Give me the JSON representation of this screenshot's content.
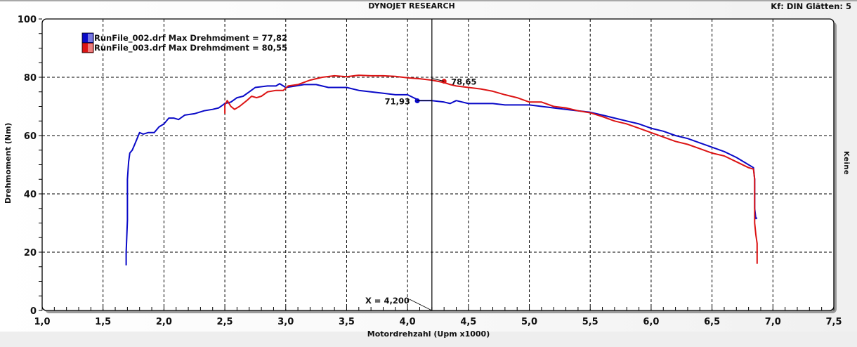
{
  "header": {
    "title": "DYNOJET RESEARCH",
    "settings": "Kf: DIN  Glätten: 5",
    "right_label": "Keine"
  },
  "colors": {
    "run_002": "#0a0ac8",
    "run_003": "#dc1414",
    "grid": "#000000",
    "plot_bg": "#ffffff",
    "shadow": "#9a9a9a"
  },
  "cursor": {
    "x_value": 4.2,
    "label": "X = 4,200",
    "markers": [
      {
        "series": "RunFile_002.drf",
        "x": 4.08,
        "y": 71.93,
        "label": "71,93"
      },
      {
        "series": "RunFile_003.drf",
        "x": 4.3,
        "y": 78.65,
        "label": "78,65"
      }
    ]
  },
  "chart_data": {
    "type": "line",
    "title": "DYNOJET RESEARCH",
    "xlabel": "Motordrehzahl (Upm x1000)",
    "ylabel": "Drehmoment (Nm)",
    "xlim": [
      1.0,
      7.5
    ],
    "ylim": [
      0,
      100
    ],
    "x_ticks": [
      "1,0",
      "1,5",
      "2,0",
      "2,5",
      "3,0",
      "3,5",
      "4,0",
      "4,5",
      "5,0",
      "5,5",
      "6,0",
      "6,5",
      "7,0",
      "7,5"
    ],
    "y_ticks": [
      "0",
      "20",
      "40",
      "60",
      "80",
      "100"
    ],
    "grid": true,
    "legend_position": "upper-left",
    "series": [
      {
        "name": "RunFile_002.drf Max Drehmoment = 77,82",
        "color": "#0a0ac8",
        "points": [
          [
            1.69,
            15.5
          ],
          [
            1.69,
            20
          ],
          [
            1.7,
            31
          ],
          [
            1.7,
            45
          ],
          [
            1.71,
            51
          ],
          [
            1.72,
            54
          ],
          [
            1.74,
            55
          ],
          [
            1.76,
            57
          ],
          [
            1.78,
            59
          ],
          [
            1.8,
            61
          ],
          [
            1.83,
            60.5
          ],
          [
            1.87,
            61
          ],
          [
            1.92,
            61
          ],
          [
            1.96,
            63
          ],
          [
            2.0,
            64
          ],
          [
            2.04,
            66
          ],
          [
            2.08,
            66
          ],
          [
            2.12,
            65.5
          ],
          [
            2.17,
            67
          ],
          [
            2.25,
            67.5
          ],
          [
            2.33,
            68.5
          ],
          [
            2.4,
            69
          ],
          [
            2.45,
            69.5
          ],
          [
            2.5,
            71
          ],
          [
            2.55,
            71.5
          ],
          [
            2.6,
            73
          ],
          [
            2.65,
            73.5
          ],
          [
            2.7,
            75
          ],
          [
            2.75,
            76.5
          ],
          [
            2.85,
            77
          ],
          [
            2.92,
            77
          ],
          [
            2.95,
            77.8
          ],
          [
            3.0,
            76.5
          ],
          [
            3.05,
            76.8
          ],
          [
            3.15,
            77.5
          ],
          [
            3.25,
            77.5
          ],
          [
            3.35,
            76.5
          ],
          [
            3.5,
            76.5
          ],
          [
            3.6,
            75.5
          ],
          [
            3.7,
            75
          ],
          [
            3.8,
            74.5
          ],
          [
            3.9,
            74
          ],
          [
            4.0,
            74
          ],
          [
            4.05,
            73
          ],
          [
            4.1,
            72
          ],
          [
            4.2,
            72
          ],
          [
            4.3,
            71.5
          ],
          [
            4.35,
            71
          ],
          [
            4.4,
            72
          ],
          [
            4.45,
            71.5
          ],
          [
            4.5,
            71
          ],
          [
            4.6,
            71
          ],
          [
            4.7,
            71
          ],
          [
            4.8,
            70.5
          ],
          [
            4.9,
            70.5
          ],
          [
            5.0,
            70.5
          ],
          [
            5.1,
            70
          ],
          [
            5.2,
            69.5
          ],
          [
            5.3,
            69
          ],
          [
            5.4,
            68.5
          ],
          [
            5.5,
            68
          ],
          [
            5.6,
            67
          ],
          [
            5.7,
            66
          ],
          [
            5.8,
            65
          ],
          [
            5.9,
            64
          ],
          [
            6.0,
            62.5
          ],
          [
            6.1,
            61.5
          ],
          [
            6.2,
            60
          ],
          [
            6.3,
            59
          ],
          [
            6.4,
            57.5
          ],
          [
            6.5,
            56
          ],
          [
            6.6,
            54.5
          ],
          [
            6.7,
            52.5
          ],
          [
            6.8,
            50
          ],
          [
            6.84,
            49
          ],
          [
            6.85,
            45
          ],
          [
            6.85,
            35
          ],
          [
            6.86,
            31.5
          ],
          [
            6.87,
            31.8
          ]
        ]
      },
      {
        "name": "RunFile_003.drf Max Drehmoment = 80,55",
        "color": "#dc1414",
        "points": [
          [
            2.5,
            67.5
          ],
          [
            2.5,
            70.5
          ],
          [
            2.52,
            72
          ],
          [
            2.55,
            70
          ],
          [
            2.58,
            69
          ],
          [
            2.62,
            70
          ],
          [
            2.68,
            72
          ],
          [
            2.72,
            73.5
          ],
          [
            2.76,
            73
          ],
          [
            2.8,
            73.5
          ],
          [
            2.85,
            75
          ],
          [
            2.92,
            75.5
          ],
          [
            2.98,
            75.5
          ],
          [
            3.02,
            77
          ],
          [
            3.1,
            77.5
          ],
          [
            3.2,
            79
          ],
          [
            3.3,
            80
          ],
          [
            3.4,
            80.5
          ],
          [
            3.5,
            80.2
          ],
          [
            3.6,
            80.7
          ],
          [
            3.7,
            80.5
          ],
          [
            3.8,
            80.5
          ],
          [
            3.9,
            80.3
          ],
          [
            4.0,
            79.8
          ],
          [
            4.1,
            79.5
          ],
          [
            4.2,
            79
          ],
          [
            4.3,
            78.2
          ],
          [
            4.35,
            77.5
          ],
          [
            4.4,
            77
          ],
          [
            4.5,
            76.5
          ],
          [
            4.6,
            76
          ],
          [
            4.7,
            75.2
          ],
          [
            4.8,
            74
          ],
          [
            4.9,
            73
          ],
          [
            5.0,
            71.5
          ],
          [
            5.1,
            71.5
          ],
          [
            5.2,
            70
          ],
          [
            5.3,
            69.5
          ],
          [
            5.4,
            68.5
          ],
          [
            5.5,
            67.8
          ],
          [
            5.6,
            66.5
          ],
          [
            5.7,
            65
          ],
          [
            5.8,
            64
          ],
          [
            5.9,
            62.5
          ],
          [
            6.0,
            61
          ],
          [
            6.1,
            59.5
          ],
          [
            6.2,
            58
          ],
          [
            6.3,
            57
          ],
          [
            6.4,
            55.5
          ],
          [
            6.5,
            54
          ],
          [
            6.6,
            53
          ],
          [
            6.7,
            51
          ],
          [
            6.8,
            49
          ],
          [
            6.84,
            48.5
          ],
          [
            6.85,
            45
          ],
          [
            6.85,
            30
          ],
          [
            6.86,
            26
          ],
          [
            6.87,
            23
          ],
          [
            6.87,
            16
          ]
        ]
      }
    ]
  }
}
